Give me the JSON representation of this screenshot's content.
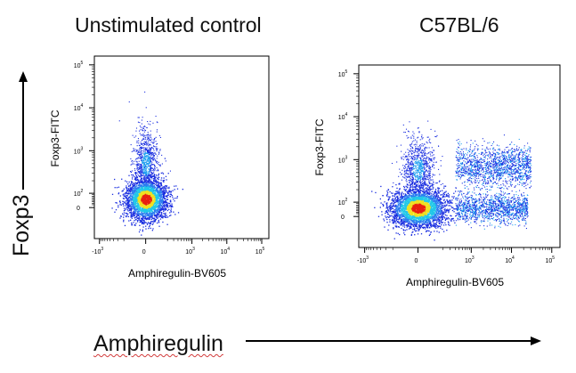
{
  "figure": {
    "y_marker_label": "Foxp3",
    "x_marker_label": "Amphiregulin"
  },
  "chart_data": [
    {
      "type": "scatter",
      "title": "Unstimulated control",
      "xlabel": "Amphiregulin-BV605",
      "ylabel": "Foxp3-FITC",
      "x_scale": "biexponential",
      "y_scale": "biexponential",
      "x_ticks": [
        "-10^3",
        "0",
        "10^3",
        "10^4",
        "10^5"
      ],
      "y_ticks": [
        "0",
        "10^2",
        "10^3",
        "10^4",
        "10^5"
      ],
      "grid": false,
      "populations": [
        {
          "name": "",
          "x_center": 0,
          "y_center": 60,
          "spread": "dense",
          "note_color": "density"
        },
        {
          "name": "",
          "x_center": 0,
          "y_center": 500,
          "spread": "sparse",
          "note_color": "density"
        }
      ]
    },
    {
      "type": "scatter",
      "title": "C57BL/6",
      "xlabel": "Amphiregulin-BV605",
      "ylabel": "Foxp3-FITC",
      "x_scale": "biexponential",
      "y_scale": "biexponential",
      "x_ticks": [
        "-10^3",
        "0",
        "10^3",
        "10^4",
        "10^5"
      ],
      "y_ticks": [
        "0",
        "10^2",
        "10^3",
        "10^4",
        "10^5"
      ],
      "grid": false,
      "populations": [
        {
          "name": "",
          "x_center": 0,
          "y_center": 60,
          "spread": "dense",
          "note_color": "density"
        },
        {
          "name": "",
          "x_center": 0,
          "y_center": 600,
          "spread": "sparse",
          "note_color": "density"
        },
        {
          "name": "",
          "x_range": [
            500,
            30000
          ],
          "y_center": 600,
          "spread": "band",
          "note_color": "density"
        },
        {
          "name": "",
          "x_range": [
            500,
            30000
          ],
          "y_center": 60,
          "spread": "band",
          "note_color": "density"
        }
      ]
    }
  ],
  "colors": {
    "cool": "#1a2ee0",
    "mid": "#22c8e8",
    "warm": "#f0e020",
    "hot": "#e82010"
  }
}
